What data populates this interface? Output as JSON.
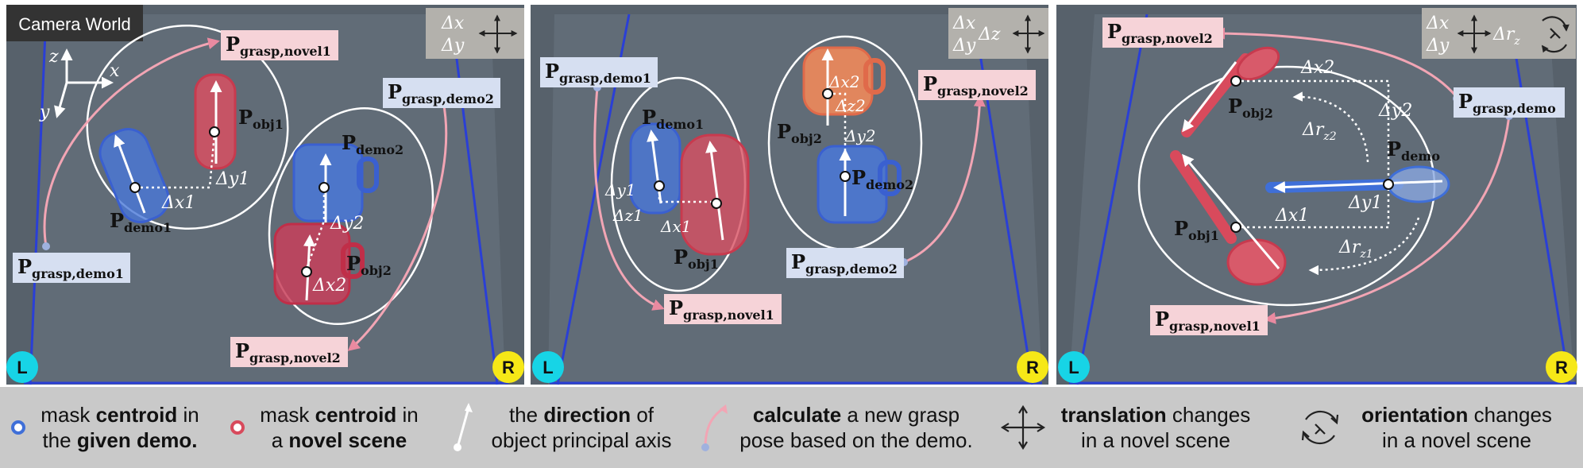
{
  "camera_label": "Camera World",
  "axes": {
    "z": "z",
    "x": "x",
    "y": "y"
  },
  "corner_left": "L",
  "corner_right": "R",
  "panels": [
    {
      "motion": {
        "line1": "Δx",
        "line2": "Δy",
        "extra": "",
        "rot": ""
      },
      "labels": {
        "grasp_novel1": "grasp,novel1",
        "grasp_demo1": "grasp,demo1",
        "grasp_demo2": "grasp,demo2",
        "grasp_novel2": "grasp,novel2",
        "obj1": "obj1",
        "obj2": "obj2",
        "demo1": "demo1",
        "demo2": "demo2"
      },
      "deltas": {
        "dx1": "Δx1",
        "dy1": "Δy1",
        "dx2": "Δx2",
        "dy2": "Δy2"
      }
    },
    {
      "motion": {
        "line1": "Δx",
        "line2": "Δy",
        "extra": "Δz",
        "rot": ""
      },
      "labels": {
        "grasp_demo1": "grasp,demo1",
        "grasp_novel2": "grasp,novel2",
        "grasp_demo2": "grasp,demo2",
        "grasp_novel1": "grasp,novel1",
        "obj1": "obj1",
        "obj2": "obj2",
        "demo1": "demo1",
        "demo2": "demo2"
      },
      "deltas": {
        "dx1": "Δx1",
        "dy1": "Δy1",
        "dz1": "Δz1",
        "dx2": "Δx2",
        "dy2": "Δy2",
        "dz2": "Δz2"
      }
    },
    {
      "motion": {
        "line1": "Δx",
        "line2": "Δy",
        "extra": "Δr",
        "rot": "z"
      },
      "labels": {
        "grasp_novel2": "grasp,novel2",
        "grasp_demo": "grasp,demo",
        "grasp_novel1": "grasp,novel1",
        "obj1": "obj1",
        "obj2": "obj2",
        "demo": "demo"
      },
      "deltas": {
        "dx1": "Δx1",
        "dy1": "Δy1",
        "dx2": "Δx2",
        "dy2": "Δy2",
        "drz1": "Δr",
        "drz1_sub": "z1",
        "drz2": "Δr",
        "drz2_sub": "z2"
      }
    }
  ],
  "legend": {
    "item1": {
      "pre": "mask ",
      "bold": "centroid",
      "mid": " in",
      "line2_pre": "the ",
      "line2_bold": "given demo.",
      "line2_post": ""
    },
    "item2": {
      "pre": "mask ",
      "bold": "centroid",
      "mid": " in",
      "line2_pre": "a ",
      "line2_bold": "novel scene",
      "line2_post": ""
    },
    "item3": {
      "pre": "the ",
      "bold": "direction",
      "mid": " of",
      "line2_pre": "object principal axis",
      "line2_bold": "",
      "line2_post": ""
    },
    "item4": {
      "pre": "",
      "bold": "calculate",
      "mid": " a new grasp",
      "line2_pre": "pose based on the demo.",
      "line2_bold": "",
      "line2_post": ""
    },
    "item5": {
      "pre": "",
      "bold": "translation",
      "mid": " changes",
      "line2_pre": "in a novel scene",
      "line2_bold": "",
      "line2_post": ""
    },
    "item6": {
      "pre": "",
      "bold": "orientation",
      "mid": " changes",
      "line2_pre": "in a novel scene",
      "line2_bold": "",
      "line2_post": ""
    }
  },
  "colors": {
    "demo_blue": "#3f6fd8",
    "novel_red": "#d84a5c",
    "novel_orange": "#f08a5a",
    "label_pink": "#f6d3d8",
    "label_blue": "#d6dff1",
    "arrow_pink": "#f2a5b4",
    "legend_bg": "#c9c9c9",
    "corner_cyan": "#17d4e6",
    "corner_yellow": "#f6e817"
  }
}
